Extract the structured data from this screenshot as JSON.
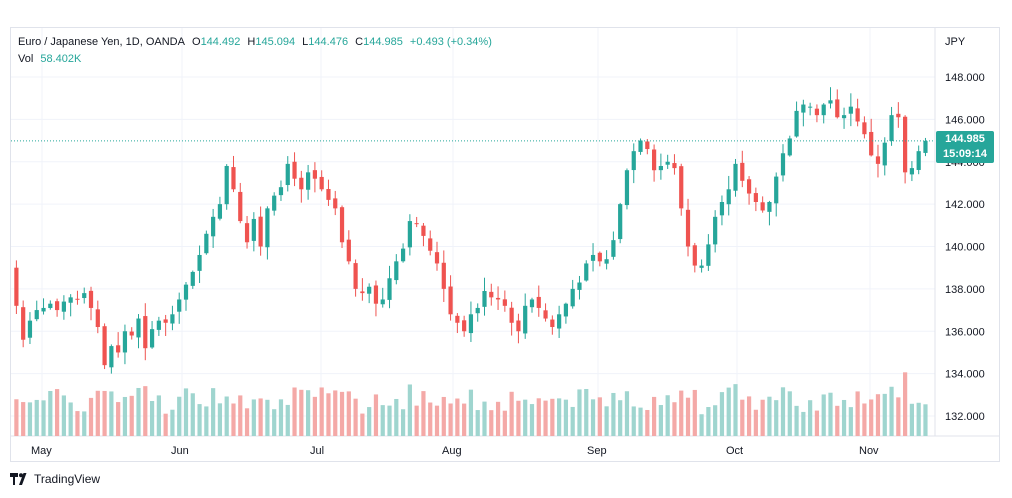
{
  "header": {
    "symbol": "Euro / Japanese Yen, 1D, OANDA",
    "open_label": "O",
    "open": "144.492",
    "high_label": "H",
    "high": "145.094",
    "low_label": "L",
    "low": "144.476",
    "close_label": "C",
    "close": "144.985",
    "change": "+0.493 (+0.34%)",
    "vol_label": "Vol",
    "vol_value": "58.402K"
  },
  "price_tag": {
    "price": "144.985",
    "countdown": "15:09:14"
  },
  "currency": "JPY",
  "brand": "TradingView",
  "colors": {
    "up": "#26a69a",
    "down": "#ef5350",
    "up_vol": "#9fd5cf",
    "down_vol": "#f4a9a7",
    "grid": "#f0f3fa",
    "axis_text": "#131722"
  },
  "chart_data": {
    "type": "candlestick",
    "y_axis": {
      "range": [
        131.0,
        149.0
      ],
      "ticks": [
        "132.000",
        "134.000",
        "136.000",
        "138.000",
        "140.000",
        "142.000",
        "144.000",
        "146.000",
        "148.000"
      ],
      "position": "right",
      "unit": "JPY"
    },
    "x_axis": {
      "ticks": [
        "May",
        "Jun",
        "Jul",
        "Aug",
        "Sep",
        "Oct",
        "Nov"
      ]
    },
    "last_price": 144.985,
    "close_path": [
      137.2,
      135.6,
      136.5,
      137.0,
      137.1,
      137.3,
      137.0,
      137.4,
      137.6,
      137.5,
      137.8,
      137.1,
      136.2,
      134.4,
      135.3,
      135.0,
      136.0,
      135.8,
      136.6,
      135.2,
      136.1,
      136.5,
      136.4,
      136.8,
      137.5,
      138.2,
      138.8,
      139.6,
      140.6,
      141.4,
      142.0,
      143.8,
      142.7,
      141.2,
      140.2,
      141.3,
      140.0,
      141.8,
      142.4,
      142.8,
      143.9,
      143.2,
      142.7,
      143.5,
      143.2,
      142.7,
      142.2,
      141.8,
      140.2,
      139.3,
      138.0,
      137.8,
      138.1,
      137.3,
      137.5,
      138.5,
      139.3,
      139.9,
      141.2,
      141.1,
      140.5,
      139.8,
      139.2,
      138.0,
      136.8,
      136.4,
      136.0,
      136.8,
      137.1,
      137.9,
      137.6,
      137.5,
      137.2,
      136.4,
      136.0,
      137.2,
      137.5,
      137.1,
      136.6,
      136.2,
      136.8,
      137.3,
      138.0,
      138.3,
      139.2,
      139.6,
      139.3,
      139.4,
      140.3,
      142.0,
      143.6,
      144.5,
      145.0,
      144.6,
      143.6,
      143.8,
      144.0,
      143.7,
      141.8,
      140.0,
      139.1,
      139.1,
      140.1,
      141.4,
      142.1,
      142.7,
      143.9,
      143.1,
      142.5,
      142.1,
      141.7,
      142.1,
      143.3,
      144.4,
      145.1,
      146.4,
      146.7,
      146.6,
      146.2,
      146.7,
      146.9,
      146.1,
      146.2,
      146.6,
      145.9,
      145.3,
      144.3,
      143.9,
      144.9,
      146.2,
      146.1,
      143.5,
      143.7,
      144.5,
      144.985
    ],
    "volume_note": "volume histogram bars colored by candle direction, scaled to the lower panel"
  }
}
